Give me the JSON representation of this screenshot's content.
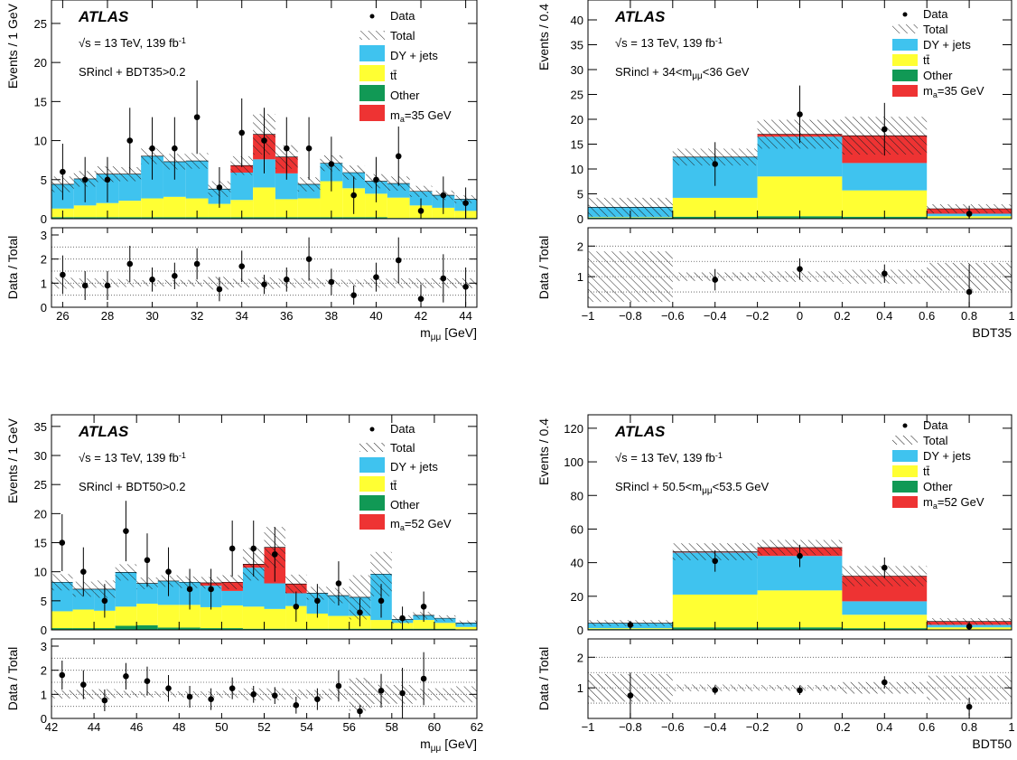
{
  "chart_data": [
    {
      "type": "bar",
      "stacked": true,
      "experiment": "ATLAS",
      "energy_label": "√s = 13 TeV,   139  fb⁻¹",
      "region_label": "SRincl + BDT35>0.2",
      "xlabel": "mμμ [GeV]",
      "ylabel": "Events / 1 GeV",
      "ratio_ylabel": "Data / Total",
      "xlim": [
        25.5,
        44.5
      ],
      "ylim": [
        0,
        28
      ],
      "ratio_ylim": [
        0,
        3.3
      ],
      "xticks": [
        26,
        28,
        30,
        32,
        34,
        36,
        38,
        40,
        42,
        44
      ],
      "yticks": [
        0,
        5,
        10,
        15,
        20,
        25
      ],
      "ratio_yticks": [
        0,
        1,
        2,
        3
      ],
      "legend": [
        "Data",
        "Total",
        "DY + jets",
        "tt̄",
        "Other",
        "mₐ=35 GeV"
      ],
      "colors": {
        "DY + jets": "#3fc3ef",
        "tt̄": "#ffff33",
        "Other": "#119955",
        "signal": "#ee3333"
      },
      "bins": [
        25.5,
        26.5,
        27.5,
        28.5,
        29.5,
        30.5,
        31.5,
        32.5,
        33.5,
        34.5,
        35.5,
        36.5,
        37.5,
        38.5,
        39.5,
        40.5,
        41.5,
        42.5,
        43.5,
        44.5
      ],
      "stack": [
        {
          "name": "Other",
          "values": [
            0.2,
            0.2,
            0.2,
            0.2,
            0.2,
            0.2,
            0.2,
            0.2,
            0.2,
            0.2,
            0.2,
            0.2,
            0.2,
            0.2,
            0.2,
            0.1,
            0.1,
            0.1,
            0.1
          ]
        },
        {
          "name": "tt̄",
          "values": [
            1.1,
            1.5,
            1.8,
            2.1,
            2.4,
            2.6,
            2.4,
            1.7,
            2.2,
            3.8,
            2.3,
            2.4,
            4.6,
            3.7,
            3.0,
            2.6,
            1.6,
            1.3,
            0.9
          ]
        },
        {
          "name": "DY + jets",
          "values": [
            3.1,
            3.4,
            3.7,
            3.4,
            5.4,
            4.5,
            4.8,
            1.9,
            3.5,
            3.6,
            3.3,
            1.8,
            2.3,
            2.0,
            1.6,
            1.8,
            1.8,
            1.6,
            1.5
          ]
        },
        {
          "name": "mₐ=35 GeV",
          "values": [
            0,
            0,
            0,
            0,
            0,
            0,
            0,
            0,
            0.9,
            3.2,
            2.1,
            0,
            0,
            0,
            0,
            0,
            0,
            0,
            0
          ]
        }
      ],
      "band_halfwidth": [
        1.0,
        1.0,
        1.0,
        0.9,
        1.0,
        1.0,
        1.0,
        1.0,
        1.2,
        2.6,
        1.5,
        0.9,
        1.0,
        0.9,
        0.9,
        0.9,
        0.7,
        0.6,
        0.5
      ],
      "data_points": [
        {
          "x": 26,
          "y": 6,
          "err": 3.6
        },
        {
          "x": 27,
          "y": 5,
          "err": 2.9
        },
        {
          "x": 28,
          "y": 5,
          "err": 2.9
        },
        {
          "x": 29,
          "y": 10,
          "err": 4.2
        },
        {
          "x": 30,
          "y": 9,
          "err": 4.0
        },
        {
          "x": 31,
          "y": 9,
          "err": 4.0
        },
        {
          "x": 32,
          "y": 13,
          "err": 4.7
        },
        {
          "x": 33,
          "y": 4,
          "err": 2.6
        },
        {
          "x": 34,
          "y": 11,
          "err": 4.4
        },
        {
          "x": 35,
          "y": 10,
          "err": 4.2
        },
        {
          "x": 36,
          "y": 9,
          "err": 4.0
        },
        {
          "x": 37,
          "y": 9,
          "err": 4.0
        },
        {
          "x": 38,
          "y": 7,
          "err": 3.5
        },
        {
          "x": 39,
          "y": 3,
          "err": 2.4
        },
        {
          "x": 40,
          "y": 5,
          "err": 2.9
        },
        {
          "x": 41,
          "y": 8,
          "err": 3.8
        },
        {
          "x": 42,
          "y": 1,
          "err": 1.6
        },
        {
          "x": 43,
          "y": 3,
          "err": 2.4
        },
        {
          "x": 44,
          "y": 2,
          "err": 2.0
        }
      ],
      "ratio_points": [
        {
          "x": 26,
          "y": 1.35,
          "err": 0.8
        },
        {
          "x": 27,
          "y": 0.9,
          "err": 0.6
        },
        {
          "x": 28,
          "y": 0.9,
          "err": 0.6
        },
        {
          "x": 29,
          "y": 1.8,
          "err": 0.75
        },
        {
          "x": 30,
          "y": 1.15,
          "err": 0.5
        },
        {
          "x": 31,
          "y": 1.3,
          "err": 0.55
        },
        {
          "x": 32,
          "y": 1.8,
          "err": 0.65
        },
        {
          "x": 33,
          "y": 0.75,
          "err": 0.5
        },
        {
          "x": 34,
          "y": 1.7,
          "err": 0.65
        },
        {
          "x": 35,
          "y": 0.95,
          "err": 0.4
        },
        {
          "x": 36,
          "y": 1.15,
          "err": 0.5
        },
        {
          "x": 37,
          "y": 2.0,
          "err": 0.9
        },
        {
          "x": 38,
          "y": 1.05,
          "err": 0.55
        },
        {
          "x": 39,
          "y": 0.5,
          "err": 0.4
        },
        {
          "x": 40,
          "y": 1.25,
          "err": 0.6
        },
        {
          "x": 41,
          "y": 1.95,
          "err": 0.95
        },
        {
          "x": 42,
          "y": 0.35,
          "err": 0.6
        },
        {
          "x": 43,
          "y": 1.2,
          "err": 1.0
        },
        {
          "x": 44,
          "y": 0.85,
          "err": 0.8
        }
      ]
    },
    {
      "type": "bar",
      "stacked": true,
      "experiment": "ATLAS",
      "energy_label": "√s = 13 TeV,   139  fb⁻¹",
      "region_label": "SRincl + 34<mμμ<36 GeV",
      "xlabel": "BDT35",
      "ylabel": "Events / 0.4",
      "ratio_ylabel": "Data / Total",
      "xlim": [
        -1,
        1
      ],
      "ylim": [
        0,
        44
      ],
      "ratio_ylim": [
        0,
        2.6
      ],
      "xticks": [
        -1,
        -0.8,
        -0.6,
        -0.4,
        -0.2,
        0,
        0.2,
        0.4,
        0.6,
        0.8,
        1
      ],
      "yticks": [
        0,
        5,
        10,
        15,
        20,
        25,
        30,
        35,
        40
      ],
      "ratio_yticks": [
        1,
        2
      ],
      "legend": [
        "Data",
        "Total",
        "DY + jets",
        "tt̄",
        "Other",
        "mₐ=35 GeV"
      ],
      "colors": {
        "DY + jets": "#3fc3ef",
        "tt̄": "#ffff33",
        "Other": "#119955",
        "signal": "#ee3333"
      },
      "bins": [
        -1,
        -0.6,
        -0.2,
        0.2,
        0.6,
        1.0
      ],
      "stack": [
        {
          "name": "Other",
          "values": [
            0.2,
            0.4,
            0.5,
            0.4,
            0.1
          ]
        },
        {
          "name": "tt̄",
          "values": [
            0.1,
            3.8,
            8.0,
            5.3,
            0.4
          ]
        },
        {
          "name": "DY + jets",
          "values": [
            2.0,
            8.2,
            8.0,
            5.5,
            0.5
          ]
        },
        {
          "name": "mₐ=35 GeV",
          "values": [
            0,
            0,
            0.5,
            5.5,
            1.0
          ]
        }
      ],
      "band_halfwidth": [
        1.9,
        1.7,
        2.9,
        3.8,
        0.9
      ],
      "data_points": [
        {
          "x": -0.4,
          "y": 11,
          "err": 4.4
        },
        {
          "x": 0,
          "y": 21,
          "err": 5.8
        },
        {
          "x": 0.4,
          "y": 18,
          "err": 5.3
        },
        {
          "x": 0.8,
          "y": 1,
          "err": 1.6
        }
      ],
      "ratio_points": [
        {
          "x": -0.4,
          "y": 0.9,
          "err": 0.35
        },
        {
          "x": 0,
          "y": 1.25,
          "err": 0.35
        },
        {
          "x": 0.4,
          "y": 1.1,
          "err": 0.3
        },
        {
          "x": 0.8,
          "y": 0.5,
          "err": 0.9
        }
      ]
    },
    {
      "type": "bar",
      "stacked": true,
      "experiment": "ATLAS",
      "energy_label": "√s = 13 TeV,   139  fb⁻¹",
      "region_label": "SRincl + BDT50>0.2",
      "xlabel": "mμμ [GeV]",
      "ylabel": "Events / 1 GeV",
      "ratio_ylabel": "Data / Total",
      "xlim": [
        42,
        62
      ],
      "ylim": [
        0,
        37
      ],
      "ratio_ylim": [
        0,
        3.3
      ],
      "xticks": [
        42,
        44,
        46,
        48,
        50,
        52,
        54,
        56,
        58,
        60,
        62
      ],
      "yticks": [
        0,
        5,
        10,
        15,
        20,
        25,
        30,
        35
      ],
      "ratio_yticks": [
        0,
        1,
        2,
        3
      ],
      "legend": [
        "Data",
        "Total",
        "DY + jets",
        "tt̄",
        "Other",
        "mₐ=52 GeV"
      ],
      "colors": {
        "DY + jets": "#3fc3ef",
        "tt̄": "#ffff33",
        "Other": "#119955",
        "signal": "#ee3333"
      },
      "bins": [
        42,
        43,
        44,
        45,
        46,
        47,
        48,
        49,
        50,
        51,
        52,
        53,
        54,
        55,
        56,
        57,
        58,
        59,
        60,
        61,
        62
      ],
      "stack": [
        {
          "name": "Other",
          "values": [
            0.3,
            0.3,
            0.3,
            0.7,
            0.8,
            0.4,
            0.4,
            0.3,
            0.3,
            0.2,
            0.2,
            0.2,
            0.2,
            0.2,
            0.2,
            0.2,
            0.2,
            0.2,
            0.2,
            0.1
          ]
        },
        {
          "name": "tt̄",
          "values": [
            2.9,
            3.2,
            3.0,
            3.3,
            3.7,
            3.9,
            3.9,
            3.6,
            3.9,
            3.8,
            3.4,
            3.9,
            2.6,
            2.2,
            2.2,
            1.5,
            1.0,
            1.5,
            1.0,
            0.4
          ]
        },
        {
          "name": "DY + jets",
          "values": [
            5.0,
            3.5,
            3.7,
            5.9,
            3.5,
            4.1,
            3.9,
            3.7,
            2.5,
            6.7,
            4.4,
            2.2,
            3.5,
            3.5,
            3.2,
            7.9,
            0.6,
            0.8,
            0.8,
            0.7
          ]
        },
        {
          "name": "mₐ=52 GeV",
          "values": [
            0,
            0,
            0,
            0,
            0,
            0,
            0,
            0.5,
            1.5,
            0.6,
            6.2,
            1.6,
            0,
            0,
            0,
            0,
            0,
            0,
            0,
            0
          ]
        }
      ],
      "band_halfwidth": [
        1.4,
        1.3,
        1.5,
        1.4,
        1.0,
        1.0,
        1.0,
        1.0,
        1.2,
        2.8,
        3.5,
        1.6,
        1.1,
        1.3,
        3.8,
        3.8,
        0.7,
        0.6,
        0.5,
        0.4
      ],
      "data_points": [
        {
          "x": 42.5,
          "y": 15,
          "err": 4.9
        },
        {
          "x": 43.5,
          "y": 10,
          "err": 4.2
        },
        {
          "x": 44.5,
          "y": 5,
          "err": 2.9
        },
        {
          "x": 45.5,
          "y": 17,
          "err": 5.2
        },
        {
          "x": 46.5,
          "y": 12,
          "err": 4.6
        },
        {
          "x": 47.5,
          "y": 10,
          "err": 4.2
        },
        {
          "x": 48.5,
          "y": 7,
          "err": 3.5
        },
        {
          "x": 49.5,
          "y": 7,
          "err": 3.5
        },
        {
          "x": 50.5,
          "y": 14,
          "err": 4.8
        },
        {
          "x": 51.5,
          "y": 14,
          "err": 4.8
        },
        {
          "x": 52.5,
          "y": 13,
          "err": 4.7
        },
        {
          "x": 53.5,
          "y": 4,
          "err": 2.6
        },
        {
          "x": 54.5,
          "y": 5,
          "err": 2.9
        },
        {
          "x": 55.5,
          "y": 8,
          "err": 3.8
        },
        {
          "x": 56.5,
          "y": 3,
          "err": 2.4
        },
        {
          "x": 57.5,
          "y": 5,
          "err": 2.9
        },
        {
          "x": 58.5,
          "y": 2,
          "err": 2.0
        },
        {
          "x": 59.5,
          "y": 4,
          "err": 2.6
        }
      ],
      "ratio_points": [
        {
          "x": 42.5,
          "y": 1.8,
          "err": 0.6
        },
        {
          "x": 43.5,
          "y": 1.4,
          "err": 0.6
        },
        {
          "x": 44.5,
          "y": 0.75,
          "err": 0.45
        },
        {
          "x": 45.5,
          "y": 1.75,
          "err": 0.55
        },
        {
          "x": 46.5,
          "y": 1.55,
          "err": 0.6
        },
        {
          "x": 47.5,
          "y": 1.25,
          "err": 0.55
        },
        {
          "x": 48.5,
          "y": 0.9,
          "err": 0.45
        },
        {
          "x": 49.5,
          "y": 0.8,
          "err": 0.45
        },
        {
          "x": 50.5,
          "y": 1.25,
          "err": 0.45
        },
        {
          "x": 51.5,
          "y": 1.0,
          "err": 0.35
        },
        {
          "x": 52.5,
          "y": 0.95,
          "err": 0.35
        },
        {
          "x": 53.5,
          "y": 0.55,
          "err": 0.35
        },
        {
          "x": 54.5,
          "y": 0.8,
          "err": 0.45
        },
        {
          "x": 55.5,
          "y": 1.35,
          "err": 0.65
        },
        {
          "x": 56.5,
          "y": 0.3,
          "err": 0.25
        },
        {
          "x": 57.5,
          "y": 1.15,
          "err": 0.7
        },
        {
          "x": 58.5,
          "y": 1.05,
          "err": 1.05
        },
        {
          "x": 59.5,
          "y": 1.65,
          "err": 1.1
        }
      ]
    },
    {
      "type": "bar",
      "stacked": true,
      "experiment": "ATLAS",
      "energy_label": "√s = 13 TeV,   139  fb⁻¹",
      "region_label": "SRincl + 50.5<mμμ<53.5 GeV",
      "xlabel": "BDT50",
      "ylabel": "Events / 0.4",
      "ratio_ylabel": "Data / Total",
      "xlim": [
        -1,
        1
      ],
      "ylim": [
        0,
        128
      ],
      "ratio_ylim": [
        0,
        2.6
      ],
      "xticks": [
        -1,
        -0.8,
        -0.6,
        -0.4,
        -0.2,
        0,
        0.2,
        0.4,
        0.6,
        0.8,
        1
      ],
      "yticks": [
        0,
        20,
        40,
        60,
        80,
        100,
        120
      ],
      "ratio_yticks": [
        1,
        2
      ],
      "legend": [
        "Data",
        "Total",
        "DY + jets",
        "tt̄",
        "Other",
        "mₐ=52 GeV"
      ],
      "colors": {
        "DY + jets": "#3fc3ef",
        "tt̄": "#ffff33",
        "Other": "#119955",
        "signal": "#ee3333"
      },
      "bins": [
        -1,
        -0.6,
        -0.2,
        0.2,
        0.6,
        1.0
      ],
      "stack": [
        {
          "name": "Other",
          "values": [
            0.5,
            1.5,
            1.5,
            1.0,
            0.3
          ]
        },
        {
          "name": "tt̄",
          "values": [
            0.5,
            19.5,
            22.0,
            8.0,
            1.2
          ]
        },
        {
          "name": "DY + jets",
          "values": [
            3.0,
            25.0,
            20.5,
            8.0,
            1.5
          ]
        },
        {
          "name": "mₐ=52 GeV",
          "values": [
            0,
            0.5,
            5.0,
            15.0,
            2.0
          ]
        }
      ],
      "band_halfwidth": [
        1.8,
        5.0,
        4.5,
        6.0,
        2.0
      ],
      "data_points": [
        {
          "x": -0.8,
          "y": 3,
          "err": 2.4
        },
        {
          "x": -0.4,
          "y": 41,
          "err": 6.4
        },
        {
          "x": 0,
          "y": 44,
          "err": 6.6
        },
        {
          "x": 0.4,
          "y": 37,
          "err": 6.1
        },
        {
          "x": 0.8,
          "y": 2,
          "err": 2.0
        }
      ],
      "ratio_points": [
        {
          "x": -0.8,
          "y": 0.75,
          "err": 0.75
        },
        {
          "x": -0.4,
          "y": 0.93,
          "err": 0.15
        },
        {
          "x": 0,
          "y": 0.92,
          "err": 0.15
        },
        {
          "x": 0.4,
          "y": 1.18,
          "err": 0.2
        },
        {
          "x": 0.8,
          "y": 0.38,
          "err": 0.3
        }
      ]
    }
  ]
}
